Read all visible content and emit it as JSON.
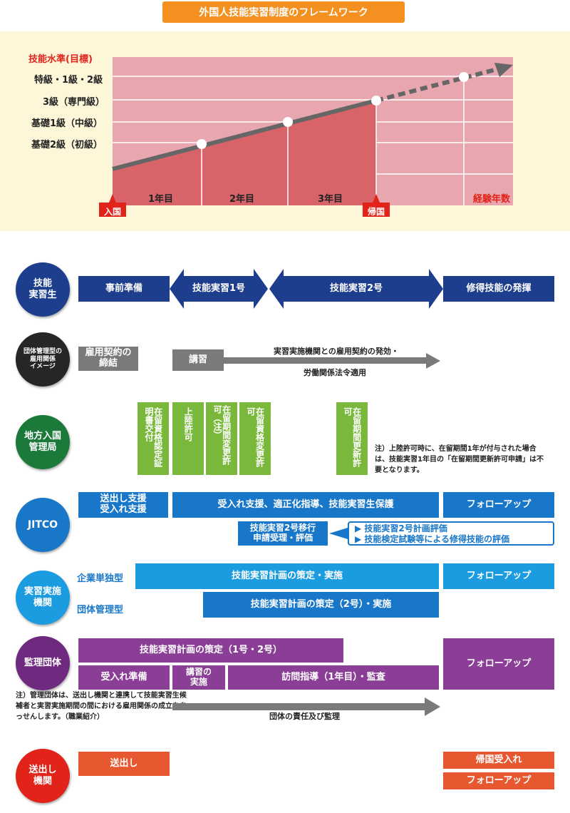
{
  "title": "外国人技能実習制度のフレームワーク",
  "chart": {
    "ylabel": "技能水準(目標)",
    "levels": [
      "特級・1級・2級",
      "3級（専門級）",
      "基礎1級（中級）",
      "基礎2級（初級）"
    ],
    "years": [
      "1年目",
      "2年目",
      "3年目"
    ],
    "xlabel": "経験年数",
    "entry": "入国",
    "return": "帰国"
  },
  "rows": {
    "trainee": {
      "label": "技能\n実習生",
      "prep": "事前準備",
      "t1": "技能実習1号",
      "t2": "技能実習2号",
      "use": "修得技能の発揮"
    },
    "employment": {
      "label": "団体管理型の\n雇用関係\nイメージ",
      "contract": "雇用契約の\n締結",
      "lecture": "講習",
      "arrow1": "実習実施機関との雇用契約の発効・",
      "arrow2": "労働関係法令適用"
    },
    "immigration": {
      "label": "地方入国\n管理局",
      "v1": "在留資格認定証明書交付",
      "v2": "上陸許可",
      "v3": "在留期間変更許可（注）",
      "v4": "在留資格変更許可",
      "v5": "在留期間更新許可",
      "note": "注）上陸許可時に、在留期間1年が付与された場合は、技能実習1年目の「在留期間更新許可申請」は不要となります。"
    },
    "jitco": {
      "label": "JITCO",
      "send": "送出し支援\n受入れ支援",
      "main": "受入れ支援、適正化指導、技能実習生保護",
      "follow": "フォローアップ",
      "transition": "技能実習2号移行\n申請受理・評価",
      "eval1": "▶ 技能実習2号計画評価",
      "eval2": "▶ 技能検定試験等による修得技能の評価"
    },
    "org": {
      "label": "実習実施\n機関",
      "type1": "企業単独型",
      "type2": "団体管理型",
      "plan1": "技能実習計画の策定・実施",
      "plan2": "技能実習計画の策定（2号）・実施",
      "follow": "フォローアップ"
    },
    "supervising": {
      "label": "監理団体",
      "plan": "技能実習計画の策定（1号・2号）",
      "prep": "受入れ準備",
      "lecture": "講習の\n実施",
      "visit": "訪問指導（1年目）・監査",
      "follow": "フォローアップ",
      "note": "注）管理団体は、送出し機関と連携して技能実習生候補者と実習実施期間の間における雇用関係の成立をあっせんします。（職業紹介）",
      "arrow": "団体の責任及び監理"
    },
    "sending": {
      "label": "送出し\n機関",
      "send": "送出し",
      "receive": "帰国受入れ",
      "follow": "フォローアップ"
    }
  },
  "colors": {
    "orange": "#f3901f",
    "navy": "#1d3e8c",
    "gray": "#7a7a7a",
    "green": "#7ab83c",
    "blue": "#1877c9",
    "cyan": "#1b9be0",
    "purple": "#8a3e96",
    "red": "#e75830",
    "chartBg": "#e8a6ae",
    "chartFill": "#d8646a"
  }
}
